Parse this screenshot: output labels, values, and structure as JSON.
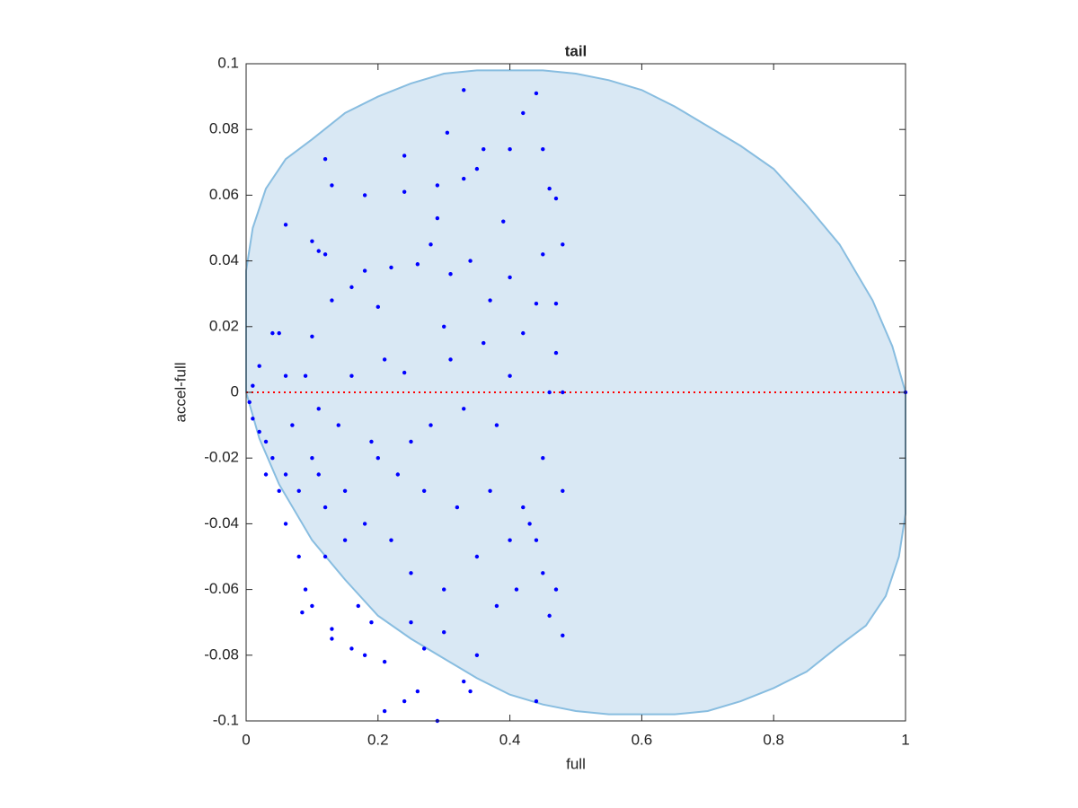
{
  "chart_data": {
    "type": "scatter",
    "title": "tail",
    "xlabel": "full",
    "ylabel": "accel-full",
    "xlim": [
      0,
      1
    ],
    "xticks": [
      0,
      0.2,
      0.4,
      0.6,
      0.8,
      1
    ],
    "ylim": [
      -0.1,
      0.1
    ],
    "yticks": [
      -0.1,
      -0.08,
      -0.06,
      -0.04,
      -0.02,
      0,
      0.02,
      0.04,
      0.06,
      0.08,
      0.1
    ],
    "grid": false,
    "series": [
      {
        "mark": "area",
        "color": "#d9e8f4",
        "edge_color": "#88bde0",
        "x": [
          0,
          0.01,
          0.03,
          0.06,
          0.1,
          0.15,
          0.2,
          0.25,
          0.3,
          0.35,
          0.4,
          0.45,
          0.5,
          0.55,
          0.6,
          0.65,
          0.7,
          0.75,
          0.8,
          0.85,
          0.9,
          0.95,
          0.98,
          1,
          1,
          0.99,
          0.97,
          0.94,
          0.9,
          0.85,
          0.8,
          0.75,
          0.7,
          0.65,
          0.6,
          0.55,
          0.5,
          0.45,
          0.4,
          0.35,
          0.3,
          0.25,
          0.2,
          0.15,
          0.1,
          0.05,
          0.02,
          0
        ],
        "values": [
          0.037,
          0.05,
          0.062,
          0.071,
          0.077,
          0.085,
          0.09,
          0.094,
          0.097,
          0.098,
          0.098,
          0.098,
          0.097,
          0.095,
          0.092,
          0.087,
          0.081,
          0.075,
          0.068,
          0.057,
          0.045,
          0.028,
          0.014,
          0,
          -0.037,
          -0.05,
          -0.062,
          -0.071,
          -0.077,
          -0.085,
          -0.09,
          -0.094,
          -0.097,
          -0.098,
          -0.098,
          -0.098,
          -0.097,
          -0.095,
          -0.092,
          -0.087,
          -0.081,
          -0.075,
          -0.068,
          -0.057,
          -0.045,
          -0.028,
          -0.014,
          0
        ]
      },
      {
        "mark": "dotted-line",
        "color": "#ff0000",
        "x": [
          0,
          1
        ],
        "values": [
          0,
          0
        ]
      },
      {
        "mark": "dot",
        "color": "#0000ff",
        "x": [
          0.33,
          0.44,
          0.42,
          0.305,
          0.4,
          0.45,
          0.36,
          0.24,
          0.12,
          0.13,
          0.18,
          0.24,
          0.29,
          0.33,
          0.35,
          0.46,
          0.47,
          0.06,
          0.29,
          0.39,
          0.1,
          0.11,
          0.12,
          0.18,
          0.22,
          0.26,
          0.31,
          0.4,
          0.45,
          0.48,
          0.04,
          0.05,
          0.02,
          0.1,
          0.13,
          0.16,
          0.2,
          0.3,
          0.37,
          0.42,
          0.47,
          0.01,
          0.005,
          0.01,
          0.02,
          0.03,
          0.04,
          0.06,
          0.08,
          0.1,
          0.12,
          0.15,
          0.2,
          0.25,
          0.28,
          0.33,
          0.38,
          0.45,
          0.48,
          0.06,
          0.08,
          0.09,
          0.085,
          0.1,
          0.13,
          0.13,
          0.16,
          0.18,
          0.21,
          0.21,
          0.24,
          0.26,
          0.29,
          0.33,
          0.34,
          0.35,
          0.44,
          0.48,
          0.47,
          0.45,
          0.4,
          0.35,
          0.3,
          0.25,
          0.22,
          0.18,
          0.15,
          0.12,
          0.43,
          0.44,
          0.42,
          0.37,
          0.32,
          0.27,
          0.23,
          0.19,
          0.14,
          0.11,
          0.09,
          0.16,
          0.24,
          0.31,
          0.36,
          0.4,
          0.46,
          0.48,
          0.44,
          0.47,
          0.28,
          0.34,
          0.21,
          0.06,
          0.07,
          0.03,
          0.05,
          0.11,
          0.17,
          0.19,
          0.25,
          0.3,
          0.27,
          0.38,
          0.41,
          0.46,
          1
        ],
        "values": [
          0.092,
          0.091,
          0.085,
          0.079,
          0.074,
          0.074,
          0.074,
          0.072,
          0.071,
          0.063,
          0.06,
          0.061,
          0.063,
          0.065,
          0.068,
          0.062,
          0.059,
          0.051,
          0.053,
          0.052,
          0.046,
          0.043,
          0.042,
          0.037,
          0.038,
          0.039,
          0.036,
          0.035,
          0.042,
          0.045,
          0.018,
          0.018,
          0.008,
          0.017,
          0.028,
          0.032,
          0.026,
          0.02,
          0.028,
          0.018,
          0.012,
          0.002,
          -0.003,
          -0.008,
          -0.012,
          -0.015,
          -0.02,
          -0.025,
          -0.03,
          -0.02,
          -0.035,
          -0.03,
          -0.02,
          -0.015,
          -0.01,
          -0.005,
          -0.01,
          -0.02,
          -0.03,
          -0.04,
          -0.05,
          -0.06,
          -0.067,
          -0.065,
          -0.072,
          -0.075,
          -0.078,
          -0.08,
          -0.082,
          -0.097,
          -0.094,
          -0.091,
          -0.1,
          -0.088,
          -0.091,
          -0.08,
          -0.094,
          -0.074,
          -0.06,
          -0.055,
          -0.045,
          -0.05,
          -0.06,
          -0.055,
          -0.045,
          -0.04,
          -0.045,
          -0.05,
          -0.04,
          -0.045,
          -0.035,
          -0.03,
          -0.035,
          -0.03,
          -0.025,
          -0.015,
          -0.01,
          -0.005,
          0.005,
          0.005,
          0.006,
          0.01,
          0.015,
          0.005,
          0,
          0,
          0.027,
          0.027,
          0.045,
          0.04,
          0.01,
          0.005,
          -0.01,
          -0.025,
          -0.03,
          -0.025,
          -0.065,
          -0.07,
          -0.07,
          -0.073,
          -0.078,
          -0.065,
          -0.06,
          -0.068,
          0
        ]
      }
    ]
  }
}
